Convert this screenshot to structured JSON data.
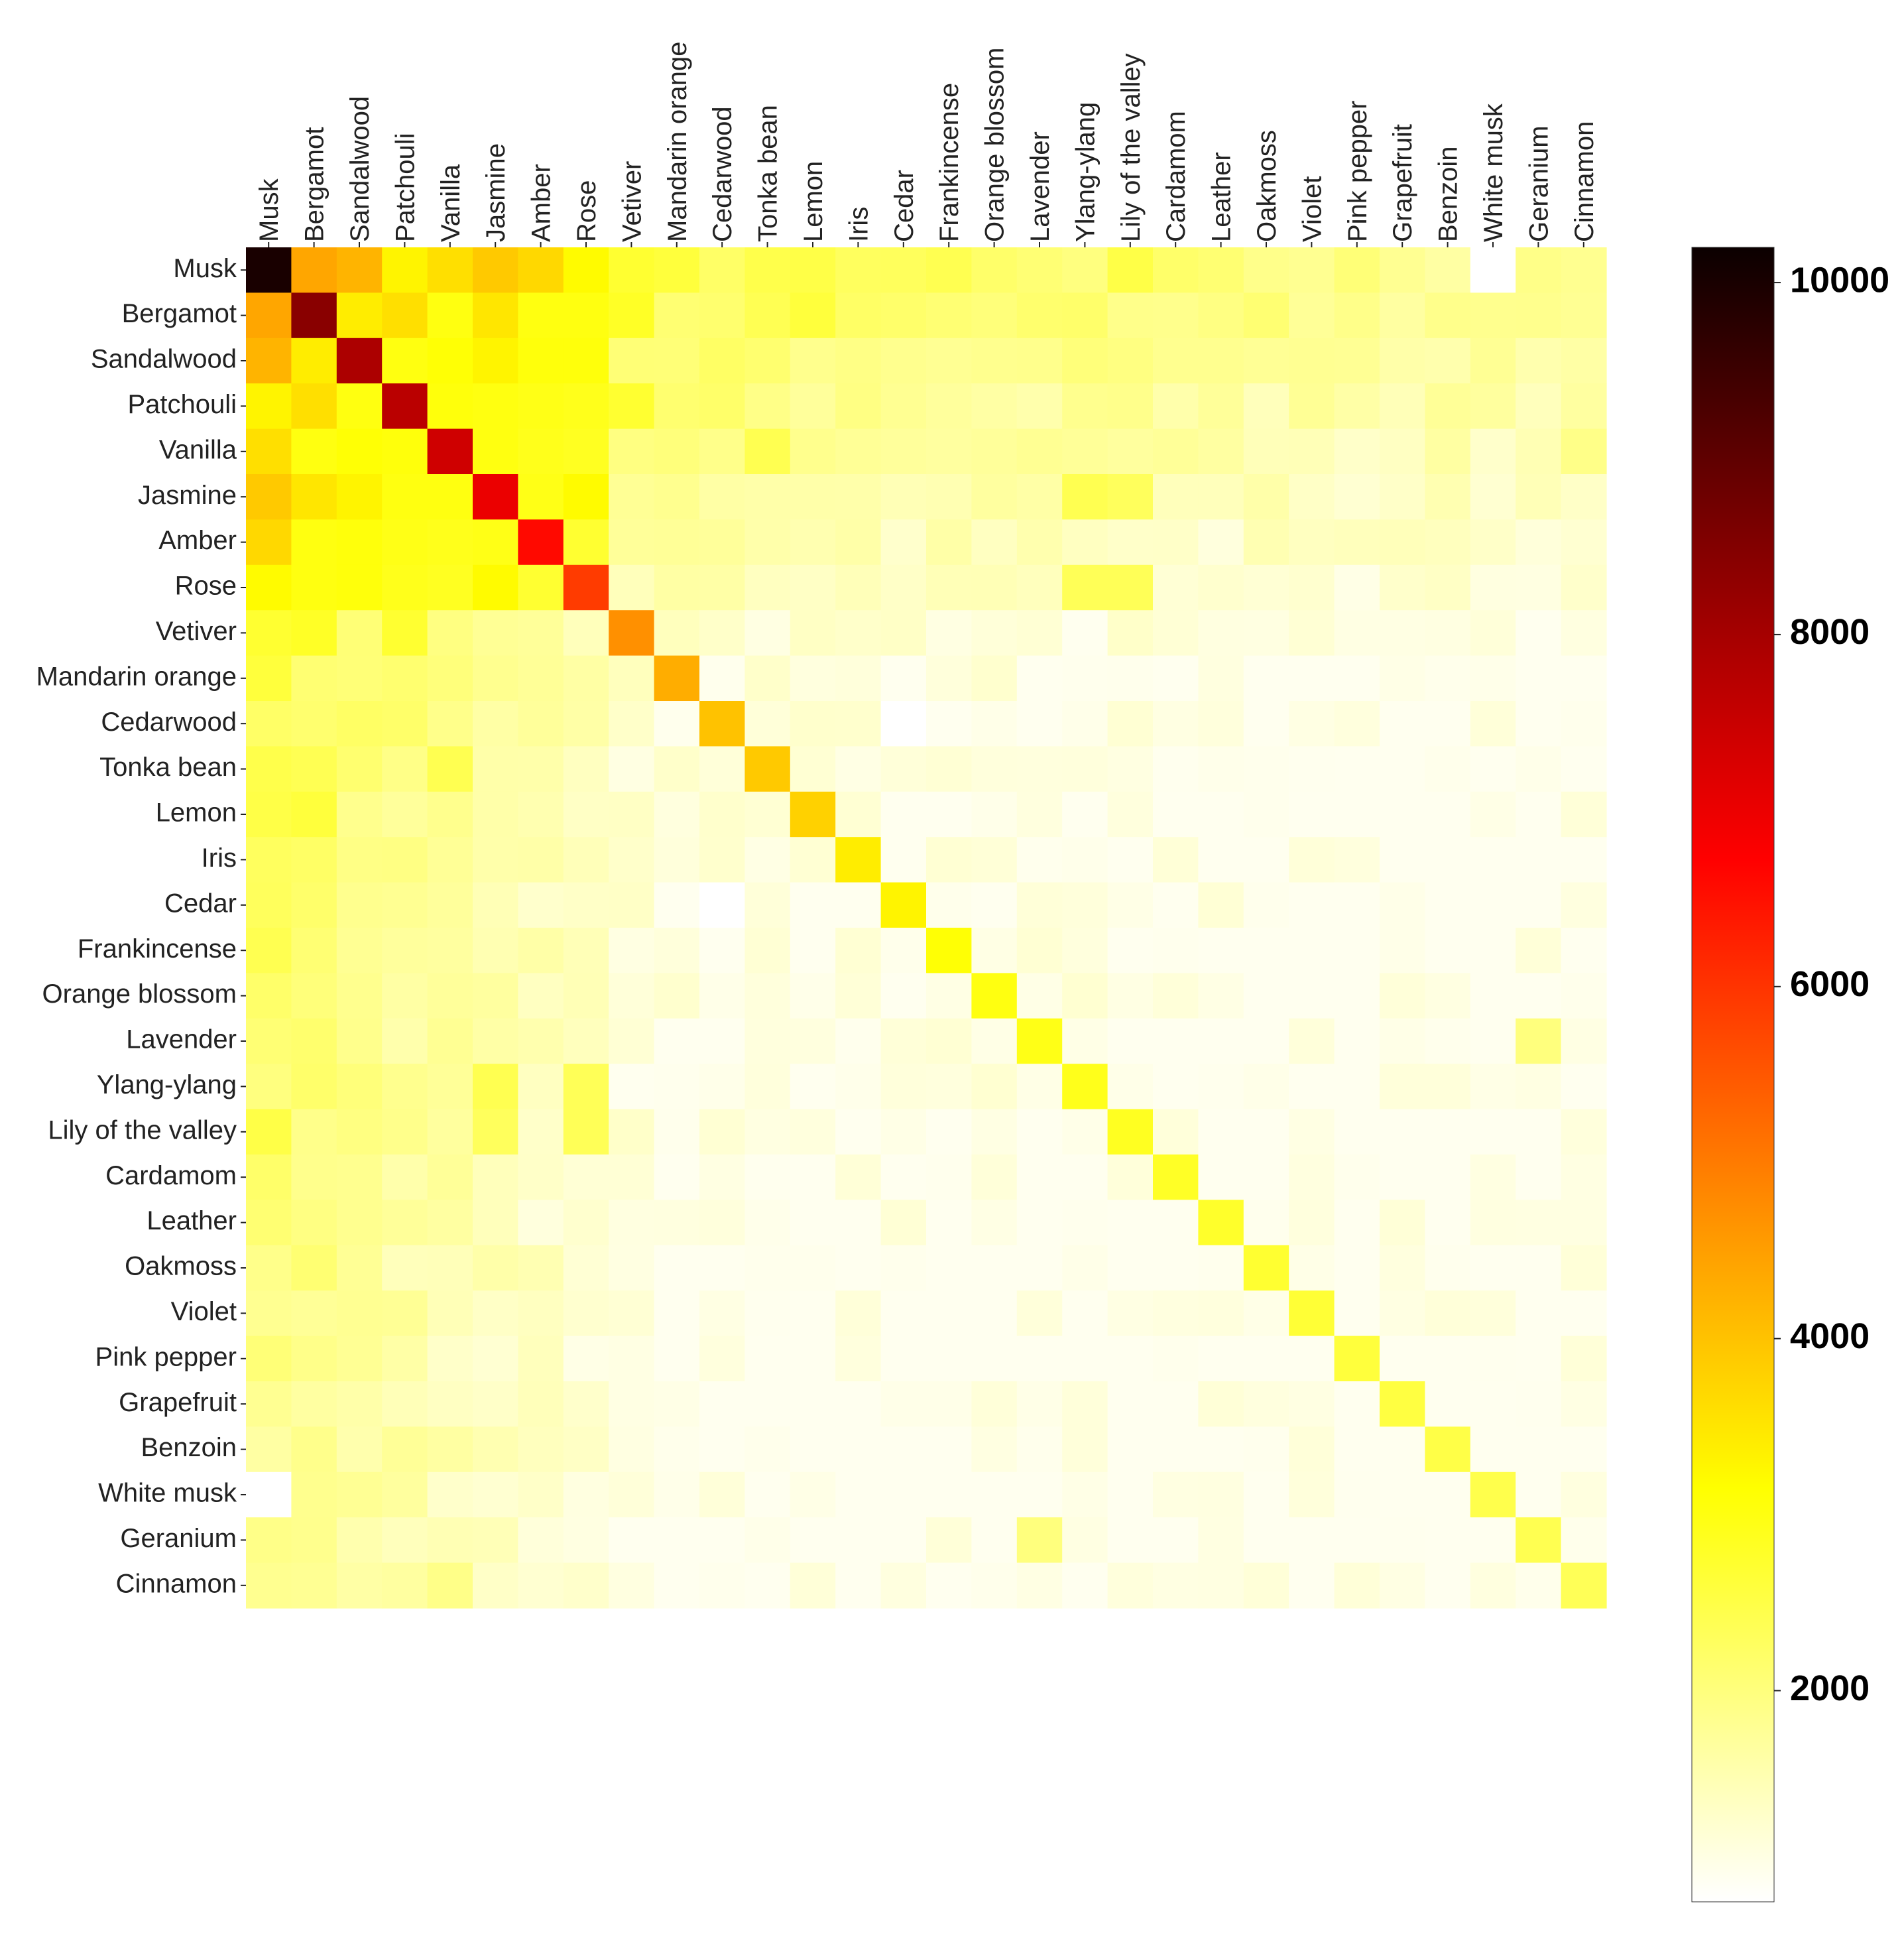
{
  "chart_data": {
    "type": "heatmap",
    "title": "",
    "xlabel": "",
    "ylabel": "",
    "categories": [
      "Musk",
      "Bergamot",
      "Sandalwood",
      "Patchouli",
      "Vanilla",
      "Jasmine",
      "Amber",
      "Rose",
      "Vetiver",
      "Mandarin orange",
      "Cedarwood",
      "Tonka bean",
      "Lemon",
      "Iris",
      "Cedar",
      "Frankincense",
      "Orange blossom",
      "Lavender",
      "Ylang-ylang",
      "Lily of the valley",
      "Cardamom",
      "Leather",
      "Oakmoss",
      "Violet",
      "Pink pepper",
      "Grapefruit",
      "Benzoin",
      "White musk",
      "Geranium",
      "Cinnamon"
    ],
    "diagonal": [
      10000,
      8400,
      7900,
      7700,
      7400,
      7000,
      6600,
      5900,
      4700,
      4300,
      4000,
      3900,
      3800,
      3400,
      3300,
      3100,
      3000,
      2950,
      2900,
      2850,
      2800,
      2750,
      2700,
      2650,
      2600,
      2550,
      2500,
      2450,
      2400,
      2350
    ],
    "overrides": [
      {
        "row": 0,
        "col": 1,
        "value": 4400
      },
      {
        "row": 0,
        "col": 2,
        "value": 4200
      },
      {
        "row": 0,
        "col": 3,
        "value": 3300
      },
      {
        "row": 0,
        "col": 4,
        "value": 3600
      },
      {
        "row": 0,
        "col": 5,
        "value": 3900
      },
      {
        "row": 0,
        "col": 6,
        "value": 3700
      },
      {
        "row": 0,
        "col": 7,
        "value": 3200
      },
      {
        "row": 1,
        "col": 2,
        "value": 3400
      },
      {
        "row": 1,
        "col": 3,
        "value": 3600
      },
      {
        "row": 1,
        "col": 4,
        "value": 3000
      },
      {
        "row": 1,
        "col": 5,
        "value": 3500
      },
      {
        "row": 1,
        "col": 6,
        "value": 3000
      },
      {
        "row": 1,
        "col": 7,
        "value": 3000
      },
      {
        "row": 2,
        "col": 3,
        "value": 3000
      },
      {
        "row": 2,
        "col": 4,
        "value": 3100
      },
      {
        "row": 2,
        "col": 5,
        "value": 3300
      },
      {
        "row": 2,
        "col": 6,
        "value": 3050
      },
      {
        "row": 2,
        "col": 7,
        "value": 3050
      },
      {
        "row": 3,
        "col": 4,
        "value": 3050
      },
      {
        "row": 3,
        "col": 5,
        "value": 3000
      },
      {
        "row": 3,
        "col": 6,
        "value": 2950
      },
      {
        "row": 3,
        "col": 7,
        "value": 2900
      },
      {
        "row": 4,
        "col": 5,
        "value": 3000
      },
      {
        "row": 4,
        "col": 6,
        "value": 2900
      },
      {
        "row": 4,
        "col": 7,
        "value": 2850
      },
      {
        "row": 5,
        "col": 6,
        "value": 2950
      },
      {
        "row": 5,
        "col": 7,
        "value": 3200
      },
      {
        "row": 6,
        "col": 7,
        "value": 2700
      },
      {
        "row": 0,
        "col": 27,
        "value": 800
      },
      {
        "row": 10,
        "col": 14,
        "value": 800
      },
      {
        "row": 0,
        "col": 8,
        "value": 2700
      },
      {
        "row": 1,
        "col": 8,
        "value": 2800
      },
      {
        "row": 0,
        "col": 9,
        "value": 2600
      },
      {
        "row": 3,
        "col": 8,
        "value": 2700
      },
      {
        "row": 0,
        "col": 12,
        "value": 2500
      },
      {
        "row": 1,
        "col": 12,
        "value": 2600
      },
      {
        "row": 0,
        "col": 19,
        "value": 2500
      },
      {
        "row": 4,
        "col": 11,
        "value": 2400
      },
      {
        "row": 5,
        "col": 18,
        "value": 2400
      },
      {
        "row": 5,
        "col": 19,
        "value": 2300
      },
      {
        "row": 7,
        "col": 18,
        "value": 2350
      },
      {
        "row": 7,
        "col": 19,
        "value": 2350
      },
      {
        "row": 17,
        "col": 28,
        "value": 2000
      },
      {
        "row": 0,
        "col": 28,
        "value": 1900
      },
      {
        "row": 4,
        "col": 29,
        "value": 1900
      },
      {
        "row": 1,
        "col": 22,
        "value": 2100
      }
    ],
    "colorbar": {
      "min": 800,
      "max": 10200,
      "ticks": [
        2000,
        4000,
        6000,
        8000,
        10000
      ]
    },
    "colormap": "hot_r",
    "grid": false
  }
}
